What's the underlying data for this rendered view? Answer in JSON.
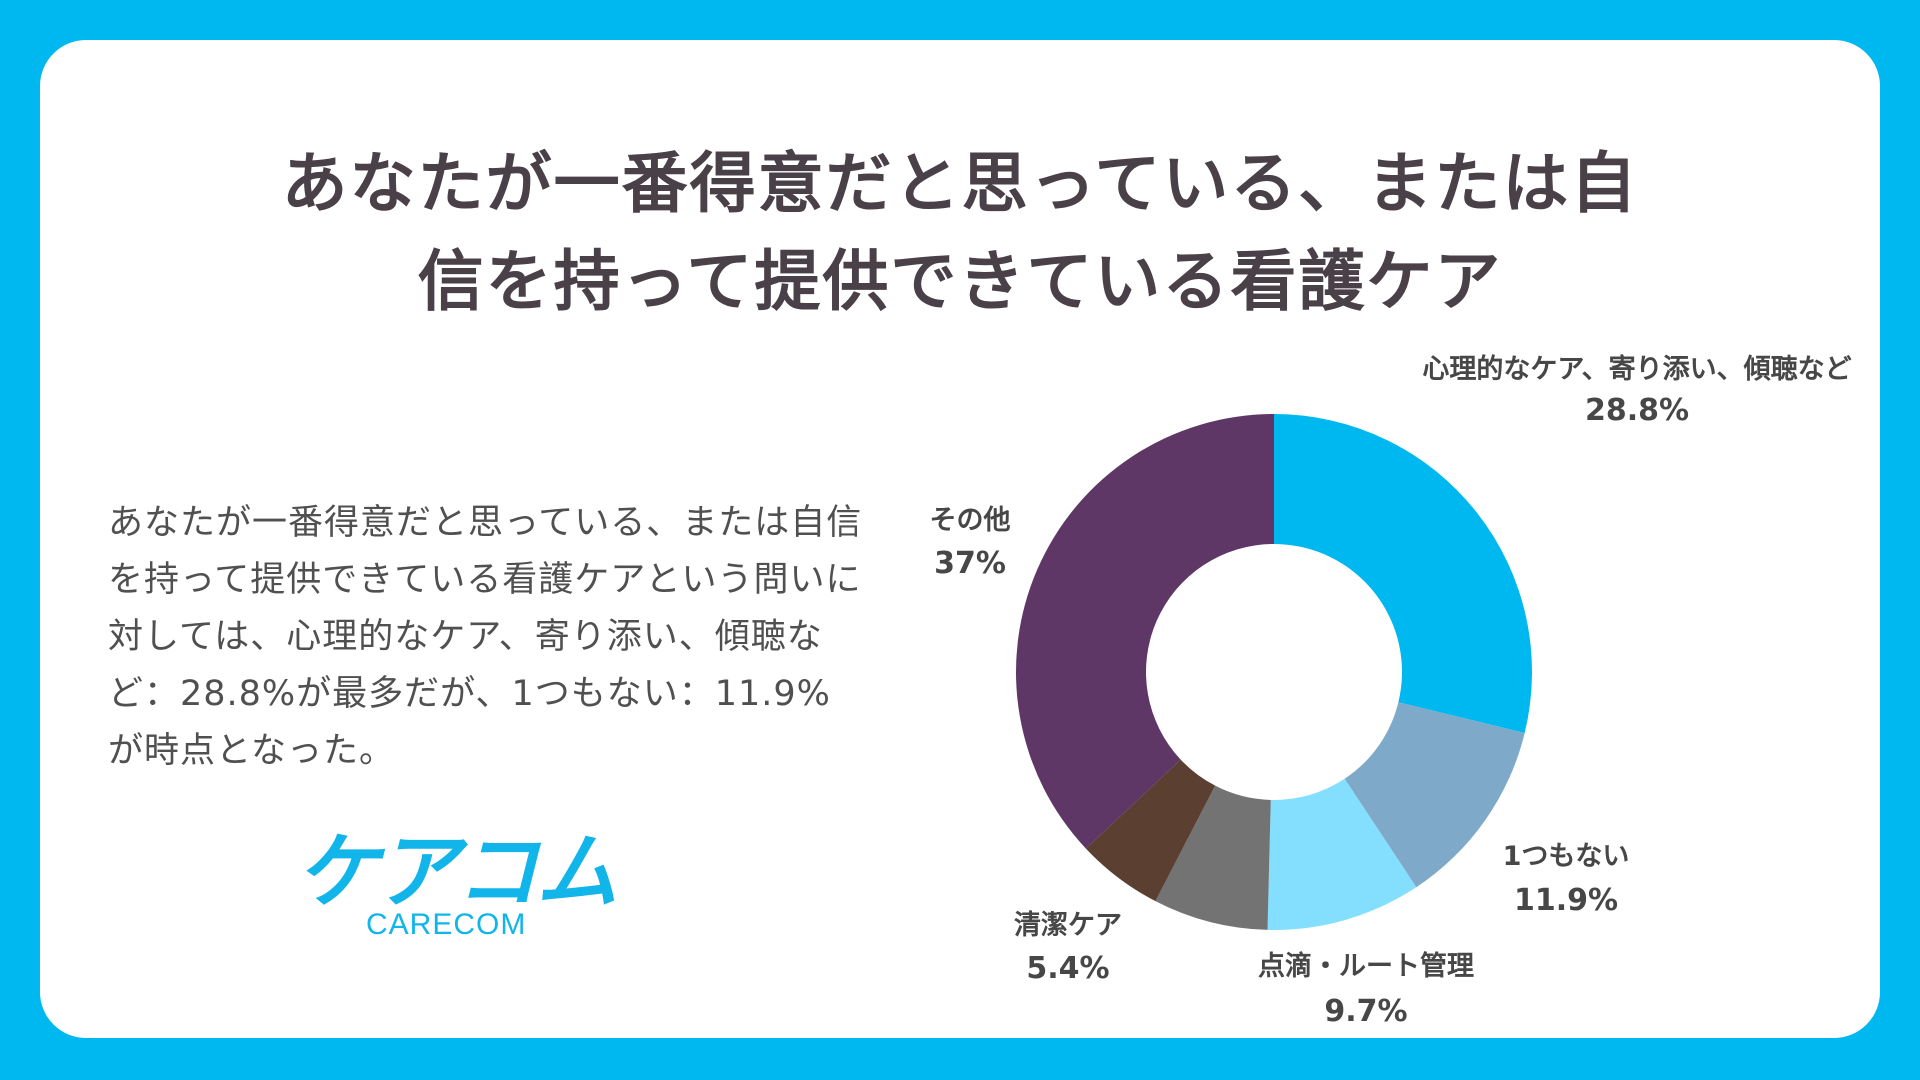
{
  "title": {
    "line1": "あなたが一番得意だと思っている、または自",
    "line2": "信を持って提供できている看護ケア"
  },
  "description": {
    "lines": [
      "あなたが一番得意だと思っている、または自信",
      "を持って提供できている看護ケアという問いに",
      "対しては、心理的なケア、寄り添い、傾聴な",
      "ど：28.8%が最多だが、1つもない：11.9%",
      "が時点となった。"
    ]
  },
  "logo": {
    "main": "ケアコム",
    "sub": "CARECOM"
  },
  "chart_data": {
    "type": "pie",
    "variant": "donut",
    "title": "あなたが一番得意だと思っている、または自信を持って提供できている看護ケア",
    "start_angle_deg": 0,
    "direction": "clockwise",
    "slices": [
      {
        "label": "心理的なケア、寄り添い、傾聴など",
        "value": 28.8,
        "value_label": "28.8%",
        "color": "#00b8f0"
      },
      {
        "label": "1つもない",
        "value": 11.9,
        "value_label": "11.9%",
        "color": "#7ea9c9"
      },
      {
        "label": "点滴・ルート管理",
        "value": 9.7,
        "value_label": "9.7%",
        "color": "#84dfff"
      },
      {
        "label": "",
        "value": 7.2,
        "value_label": "",
        "color": "#737373"
      },
      {
        "label": "清潔ケア",
        "value": 5.4,
        "value_label": "5.4%",
        "color": "#5b3f30"
      },
      {
        "label": "その他",
        "value": 37,
        "value_label": "37%",
        "color": "#5e3766"
      }
    ]
  }
}
